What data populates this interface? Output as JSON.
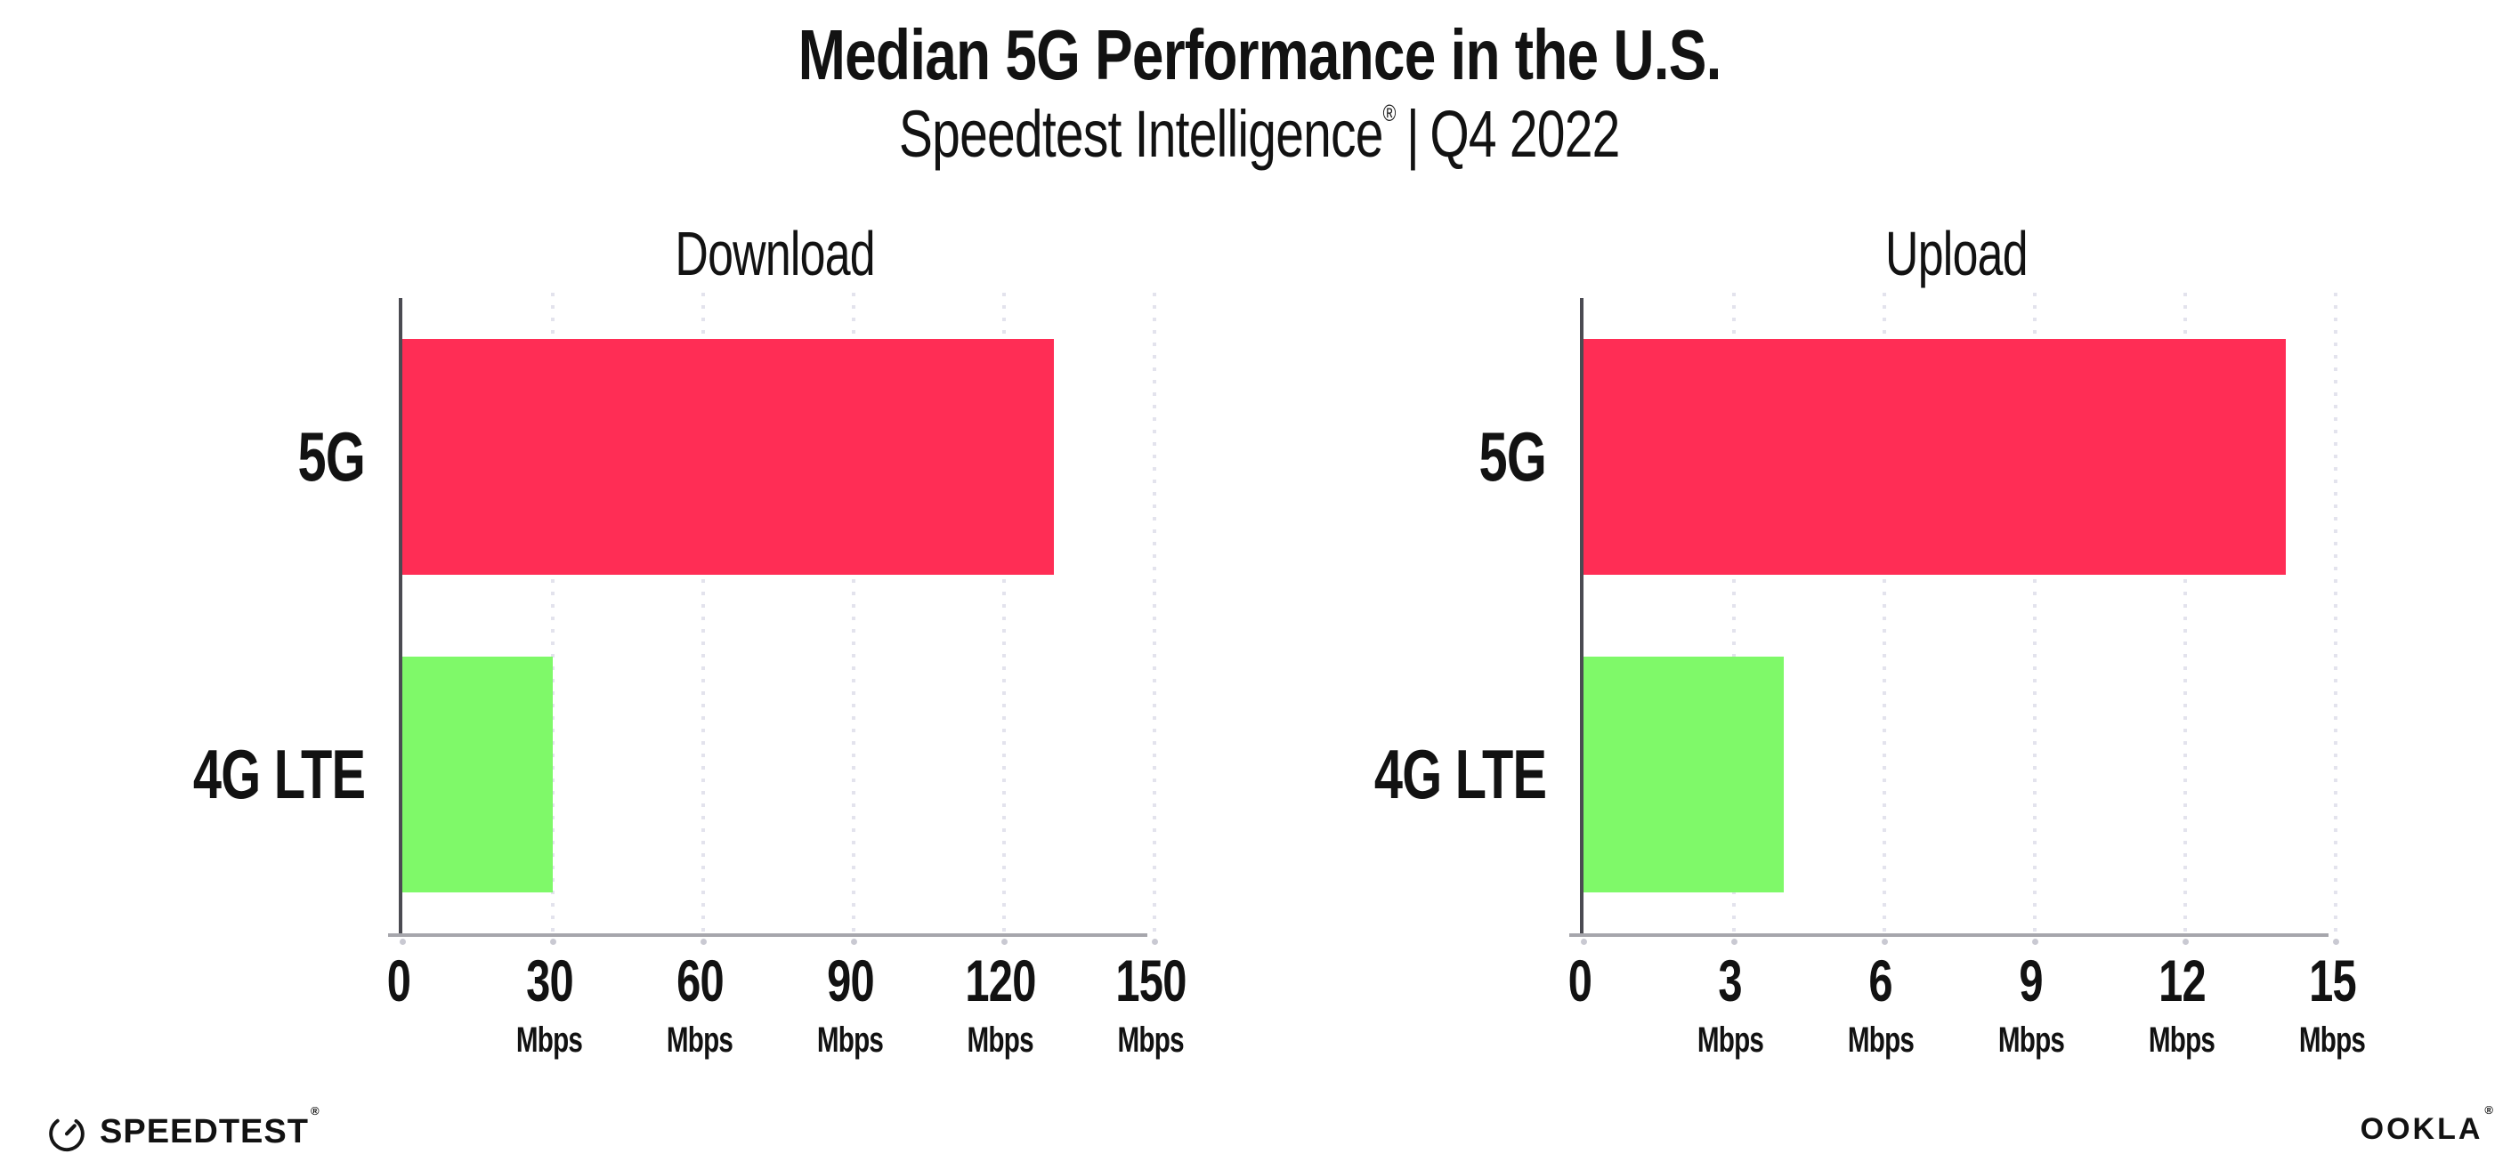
{
  "header": {
    "title": "Median 5G Performance in the U.S.",
    "subtitle_brand": "Speedtest Intelligence",
    "subtitle_registered": "®",
    "subtitle_separator": "|",
    "subtitle_period": "Q4 2022"
  },
  "footer": {
    "speedtest_label": "SPEEDTEST",
    "speedtest_registered": "®",
    "gauge_icon": "speedtest-gauge-icon",
    "ookla_label": "OOKLA",
    "ookla_registered": "®"
  },
  "colors": {
    "bar_5g": "#FF2D55",
    "bar_4g_lte": "#7FF969",
    "y_axis": "#4B4B52",
    "x_axis": "#A6A6AC",
    "gridline": "#E3E3ED",
    "tick_dot": "#C9C9D2",
    "text": "#121212"
  },
  "chart_data": [
    {
      "type": "bar",
      "orientation": "horizontal",
      "title": "Download",
      "categories": [
        "5G",
        "4G LTE"
      ],
      "values": [
        130,
        30
      ],
      "unit": "Mbps",
      "xlim": [
        0,
        150
      ],
      "xticks": [
        0,
        30,
        60,
        90,
        120,
        150
      ],
      "xtick_units": [
        "",
        "Mbps",
        "Mbps",
        "Mbps",
        "Mbps",
        "Mbps"
      ],
      "bar_colors": [
        "#FF2D55",
        "#7FF969"
      ],
      "grid": "vertical-dotted",
      "legend": "none",
      "data_labels": false
    },
    {
      "type": "bar",
      "orientation": "horizontal",
      "title": "Upload",
      "categories": [
        "5G",
        "4G LTE"
      ],
      "values": [
        14,
        4
      ],
      "unit": "Mbps",
      "xlim": [
        0,
        15
      ],
      "xticks": [
        0,
        3,
        6,
        9,
        12,
        15
      ],
      "xtick_units": [
        "",
        "Mbps",
        "Mbps",
        "Mbps",
        "Mbps",
        "Mbps"
      ],
      "bar_colors": [
        "#FF2D55",
        "#7FF969"
      ],
      "grid": "vertical-dotted",
      "legend": "none",
      "data_labels": false
    }
  ]
}
